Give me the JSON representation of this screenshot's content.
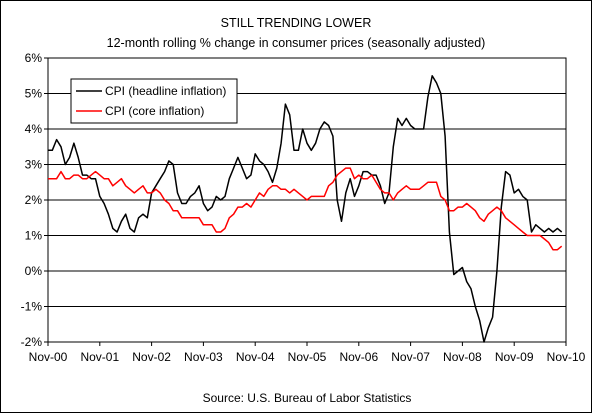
{
  "chart_data": {
    "type": "line",
    "title": "STILL TRENDING LOWER",
    "subtitle": "12-month rolling % change in consumer prices (seasonally adjusted)",
    "source": "Source: U.S. Bureau of Labor Statistics",
    "xlabel": "",
    "ylabel": "",
    "x_tick_labels": [
      "Nov-00",
      "Nov-01",
      "Nov-02",
      "Nov-03",
      "Nov-04",
      "Nov-05",
      "Nov-06",
      "Nov-07",
      "Nov-08",
      "Nov-09",
      "Nov-10"
    ],
    "y_tick_labels": [
      "6%",
      "5%",
      "4%",
      "3%",
      "2%",
      "1%",
      "0%",
      "-1%",
      "-2%"
    ],
    "y_ticks": [
      6,
      5,
      4,
      3,
      2,
      1,
      0,
      -1,
      -2
    ],
    "ylim": [
      -2,
      6
    ],
    "x_months": 120,
    "grid": "horizontal",
    "legend_position": "top-left",
    "series": [
      {
        "name": "CPI (headline inflation)",
        "color": "#000000",
        "values": [
          3.4,
          3.4,
          3.7,
          3.5,
          3.0,
          3.2,
          3.6,
          3.2,
          2.7,
          2.7,
          2.6,
          2.6,
          2.1,
          1.9,
          1.6,
          1.2,
          1.1,
          1.4,
          1.6,
          1.2,
          1.1,
          1.5,
          1.6,
          1.5,
          2.2,
          2.4,
          2.6,
          2.8,
          3.1,
          3.0,
          2.2,
          1.9,
          1.9,
          2.1,
          2.2,
          2.4,
          1.9,
          1.7,
          1.8,
          2.1,
          2.0,
          2.1,
          2.6,
          2.9,
          3.2,
          2.9,
          2.6,
          2.7,
          3.3,
          3.1,
          3.0,
          2.8,
          2.5,
          2.9,
          3.6,
          4.7,
          4.4,
          3.4,
          3.4,
          4.0,
          3.6,
          3.4,
          3.6,
          4.0,
          4.2,
          4.1,
          3.8,
          2.0,
          1.4,
          2.2,
          2.6,
          2.1,
          2.4,
          2.8,
          2.8,
          2.7,
          2.7,
          2.4,
          1.9,
          2.2,
          3.5,
          4.3,
          4.1,
          4.3,
          4.1,
          4.0,
          4.0,
          4.0,
          4.9,
          5.5,
          5.3,
          5.0,
          3.8,
          1.1,
          -0.1,
          0.0,
          0.1,
          -0.3,
          -0.5,
          -1.0,
          -1.4,
          -2.0,
          -1.6,
          -1.3,
          0.0,
          1.8,
          2.8,
          2.7,
          2.2,
          2.3,
          2.1,
          2.0,
          1.1,
          1.3,
          1.2,
          1.1,
          1.2,
          1.1,
          1.2,
          1.1
        ]
      },
      {
        "name": "CPI (core inflation)",
        "color": "#ff0000",
        "values": [
          2.6,
          2.6,
          2.6,
          2.8,
          2.6,
          2.6,
          2.7,
          2.7,
          2.6,
          2.6,
          2.7,
          2.8,
          2.7,
          2.6,
          2.6,
          2.4,
          2.5,
          2.6,
          2.4,
          2.3,
          2.2,
          2.3,
          2.4,
          2.2,
          2.2,
          2.3,
          2.2,
          2.0,
          1.9,
          1.7,
          1.7,
          1.5,
          1.5,
          1.5,
          1.5,
          1.5,
          1.3,
          1.3,
          1.3,
          1.1,
          1.1,
          1.2,
          1.5,
          1.6,
          1.8,
          1.8,
          1.9,
          1.8,
          2.0,
          2.2,
          2.1,
          2.3,
          2.4,
          2.4,
          2.3,
          2.3,
          2.2,
          2.3,
          2.2,
          2.1,
          2.0,
          2.1,
          2.1,
          2.1,
          2.1,
          2.4,
          2.5,
          2.7,
          2.8,
          2.9,
          2.9,
          2.6,
          2.7,
          2.6,
          2.6,
          2.7,
          2.5,
          2.3,
          2.2,
          2.2,
          2.0,
          2.2,
          2.3,
          2.4,
          2.3,
          2.3,
          2.3,
          2.4,
          2.5,
          2.5,
          2.5,
          2.1,
          2.0,
          1.7,
          1.7,
          1.8,
          1.8,
          1.9,
          1.8,
          1.7,
          1.5,
          1.4,
          1.6,
          1.7,
          1.8,
          1.7,
          1.5,
          1.4,
          1.3,
          1.2,
          1.1,
          1.0,
          1.0,
          1.0,
          1.0,
          0.9,
          0.8,
          0.6,
          0.6,
          0.7
        ]
      }
    ]
  }
}
